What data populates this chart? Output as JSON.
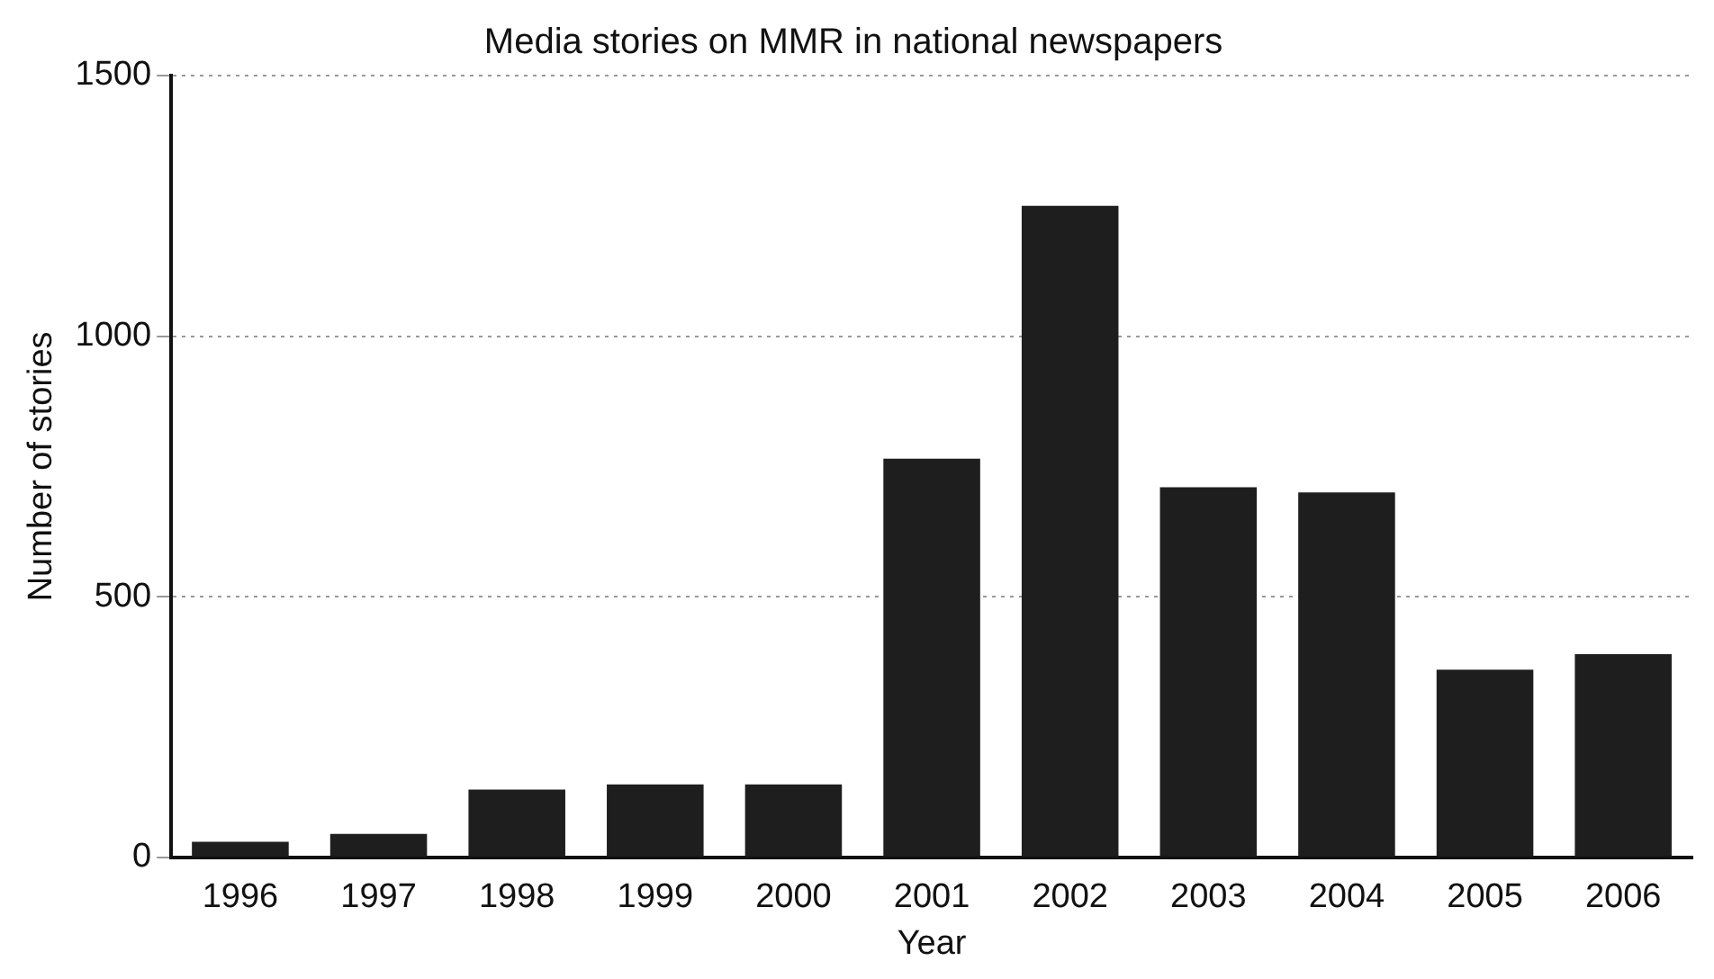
{
  "chart_data": {
    "type": "bar",
    "title": "Media stories on MMR in national newspapers",
    "xlabel": "Year",
    "ylabel": "Number of stories",
    "categories": [
      "1996",
      "1997",
      "1998",
      "1999",
      "2000",
      "2001",
      "2002",
      "2003",
      "2004",
      "2005",
      "2006"
    ],
    "values": [
      30,
      45,
      130,
      140,
      140,
      765,
      1250,
      710,
      700,
      360,
      390
    ],
    "color": "#1e1e1e",
    "ylim": [
      0,
      1500
    ],
    "yticks": [
      0,
      500,
      1000,
      1500
    ],
    "grid": "y"
  }
}
